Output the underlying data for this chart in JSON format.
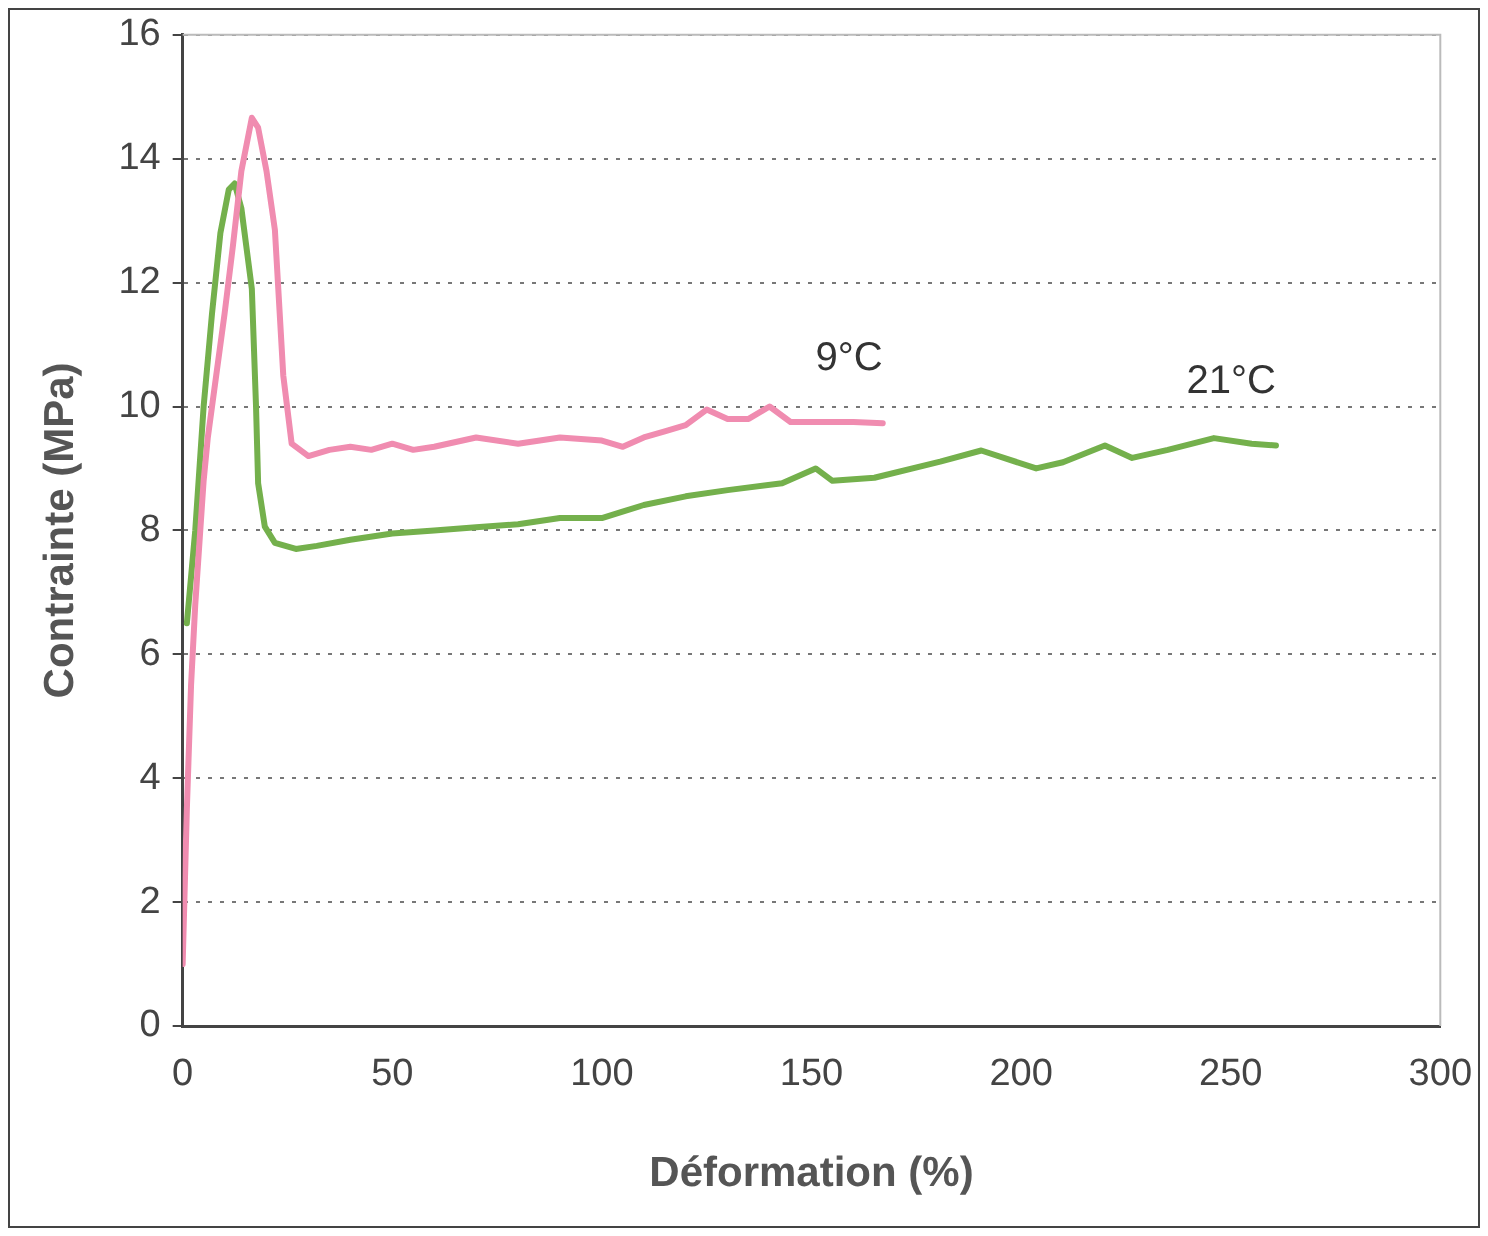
{
  "chart_data": {
    "type": "line",
    "xlabel": "Déformation (%)",
    "ylabel": "Contrainte (MPa)",
    "xlim": [
      0,
      300
    ],
    "xticks": [
      0,
      50,
      100,
      150,
      200,
      250,
      300
    ],
    "ylim": [
      0,
      16
    ],
    "yticks": [
      0,
      2,
      4,
      6,
      8,
      10,
      12,
      14,
      16
    ],
    "grid": "y",
    "legend": false,
    "marker": "none",
    "line_style": "solid",
    "series": [
      {
        "name": "9°C",
        "color": "#f08cb0",
        "x": [
          0,
          1,
          2,
          3,
          4,
          5,
          6,
          8,
          10,
          12,
          14,
          16.5,
          18,
          20,
          22,
          24,
          26,
          30,
          35,
          40,
          45,
          50,
          55,
          60,
          70,
          80,
          90,
          100,
          105,
          110,
          115,
          120,
          125,
          130,
          135,
          140,
          145,
          150,
          160,
          167
        ],
        "values": [
          1,
          3.5,
          5.5,
          6.8,
          7.8,
          8.8,
          9.5,
          10.5,
          11.5,
          12.6,
          13.8,
          14.66,
          14.5,
          13.8,
          12.85,
          10.5,
          9.4,
          9.2,
          9.3,
          9.35,
          9.3,
          9.4,
          9.3,
          9.35,
          9.5,
          9.4,
          9.5,
          9.45,
          9.35,
          9.5,
          9.6,
          9.7,
          9.95,
          9.8,
          9.8,
          10,
          9.75,
          9.75,
          9.75,
          9.73
        ]
      },
      {
        "name": "21°C",
        "color": "#74b04c",
        "x": [
          1,
          3,
          5,
          7,
          9,
          11,
          12.4,
          14,
          16.5,
          17.5,
          18,
          19.6,
          22,
          27,
          32,
          40,
          50,
          60,
          70,
          80,
          90,
          100,
          110,
          120,
          130,
          143,
          151,
          155,
          165,
          180.7,
          190.5,
          203.6,
          210,
          220,
          226.5,
          235,
          246,
          255,
          260.8
        ],
        "values": [
          6.5,
          8,
          10,
          11.5,
          12.8,
          13.5,
          13.6,
          13.2,
          11.9,
          10,
          8.76,
          8.06,
          7.8,
          7.7,
          7.75,
          7.85,
          7.95,
          8,
          8.05,
          8.1,
          8.2,
          8.2,
          8.41,
          8.55,
          8.65,
          8.76,
          9,
          8.8,
          8.85,
          9.11,
          9.29,
          9,
          9.1,
          9.37,
          9.17,
          9.3,
          9.49,
          9.4,
          9.37
        ]
      }
    ]
  }
}
